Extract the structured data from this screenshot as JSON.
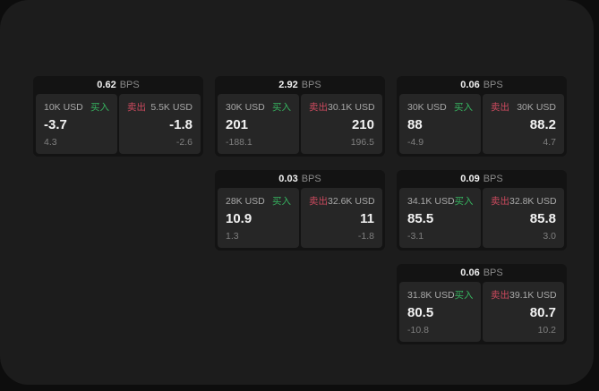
{
  "labels": {
    "bps_unit": "BPS",
    "buy": "买入",
    "sell": "卖出"
  },
  "colors": {
    "buy_accent": "#36b35f",
    "sell_accent": "#cb4a5e",
    "window_bg": "#1c1c1c",
    "card_bg": "#131313",
    "panel_bg": "#262626",
    "outer_bg": "#0d0d0d"
  },
  "cards": [
    {
      "bps": "0.62",
      "buy": {
        "amount": "10K USD",
        "value": "-3.7",
        "delta": "4.3"
      },
      "sell": {
        "amount": "5.5K USD",
        "value": "-1.8",
        "delta": "-2.6"
      }
    },
    {
      "bps": "2.92",
      "buy": {
        "amount": "30K USD",
        "value": "201",
        "delta": "-188.1"
      },
      "sell": {
        "amount": "30.1K USD",
        "value": "210",
        "delta": "196.5"
      }
    },
    {
      "bps": "0.06",
      "buy": {
        "amount": "30K USD",
        "value": "88",
        "delta": "-4.9"
      },
      "sell": {
        "amount": "30K USD",
        "value": "88.2",
        "delta": "4.7"
      }
    },
    {
      "bps": "0.03",
      "buy": {
        "amount": "28K USD",
        "value": "10.9",
        "delta": "1.3"
      },
      "sell": {
        "amount": "32.6K USD",
        "value": "11",
        "delta": "-1.8"
      }
    },
    {
      "bps": "0.09",
      "buy": {
        "amount": "34.1K USD",
        "value": "85.5",
        "delta": "-3.1"
      },
      "sell": {
        "amount": "32.8K USD",
        "value": "85.8",
        "delta": "3.0"
      }
    },
    {
      "bps": "0.06",
      "buy": {
        "amount": "31.8K USD",
        "value": "80.5",
        "delta": "-10.8"
      },
      "sell": {
        "amount": "39.1K USD",
        "value": "80.7",
        "delta": "10.2"
      }
    }
  ]
}
